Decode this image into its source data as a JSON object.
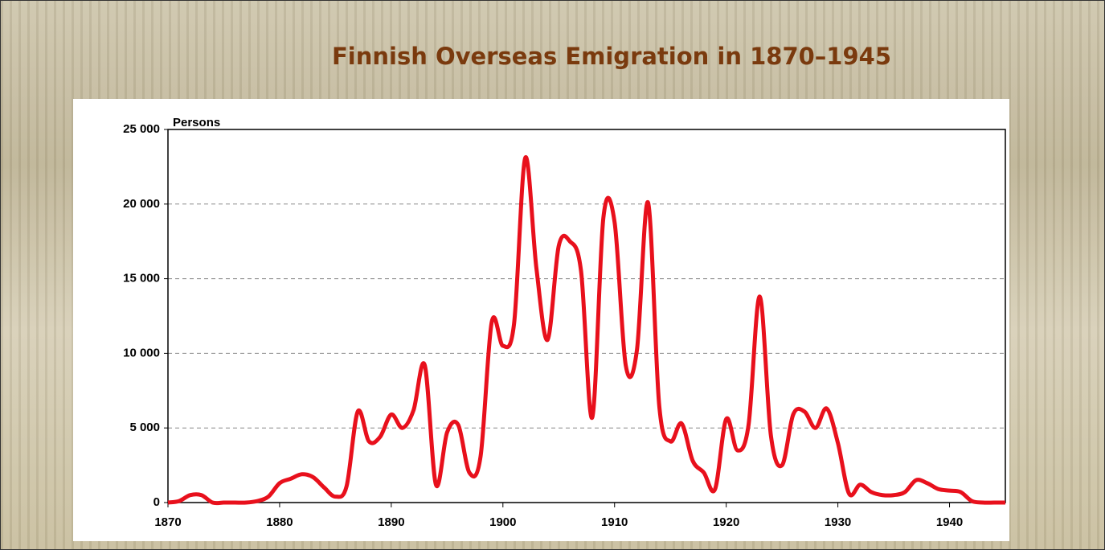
{
  "chart_data": {
    "type": "line",
    "title": "Finnish Overseas Emigration in 1870–1945",
    "y_label": "Persons",
    "x": [
      1870,
      1871,
      1872,
      1873,
      1874,
      1875,
      1876,
      1877,
      1878,
      1879,
      1880,
      1881,
      1882,
      1883,
      1884,
      1885,
      1886,
      1887,
      1888,
      1889,
      1890,
      1891,
      1892,
      1893,
      1894,
      1895,
      1896,
      1897,
      1898,
      1899,
      1900,
      1901,
      1902,
      1903,
      1904,
      1905,
      1906,
      1907,
      1908,
      1909,
      1910,
      1911,
      1912,
      1913,
      1914,
      1915,
      1916,
      1917,
      1918,
      1919,
      1920,
      1921,
      1922,
      1923,
      1924,
      1925,
      1926,
      1927,
      1928,
      1929,
      1930,
      1931,
      1932,
      1933,
      1934,
      1935,
      1936,
      1937,
      1938,
      1939,
      1940,
      1941,
      1942,
      1943,
      1944,
      1945
    ],
    "values": [
      0,
      100,
      500,
      500,
      0,
      0,
      0,
      0,
      100,
      400,
      1300,
      1600,
      1900,
      1700,
      1000,
      400,
      1100,
      6100,
      4100,
      4400,
      5900,
      5000,
      6200,
      9200,
      1200,
      4700,
      5200,
      2000,
      3100,
      12100,
      10500,
      12000,
      23100,
      15700,
      10900,
      17200,
      17500,
      15500,
      5700,
      19100,
      18800,
      9200,
      10200,
      20100,
      6500,
      4100,
      5300,
      2800,
      2000,
      900,
      5600,
      3500,
      5200,
      13800,
      4500,
      2500,
      5900,
      6100,
      5000,
      6300,
      4000,
      600,
      1200,
      700,
      500,
      500,
      700,
      1500,
      1300,
      900,
      800,
      700,
      100,
      0,
      0,
      0
    ],
    "color": "#e8101c",
    "xlim": [
      1870,
      1945
    ],
    "xticks": [
      1870,
      1880,
      1890,
      1900,
      1910,
      1920,
      1930,
      1940
    ],
    "ylim": [
      0,
      25000
    ],
    "yticks": [
      0,
      {
        "value": 5000,
        "label": "5 000"
      },
      {
        "value": 10000,
        "label": "10 000"
      },
      {
        "value": 15000,
        "label": "15 000"
      },
      {
        "value": 20000,
        "label": "20 000"
      },
      {
        "value": 25000,
        "label": "25 000"
      }
    ],
    "grid": true
  }
}
